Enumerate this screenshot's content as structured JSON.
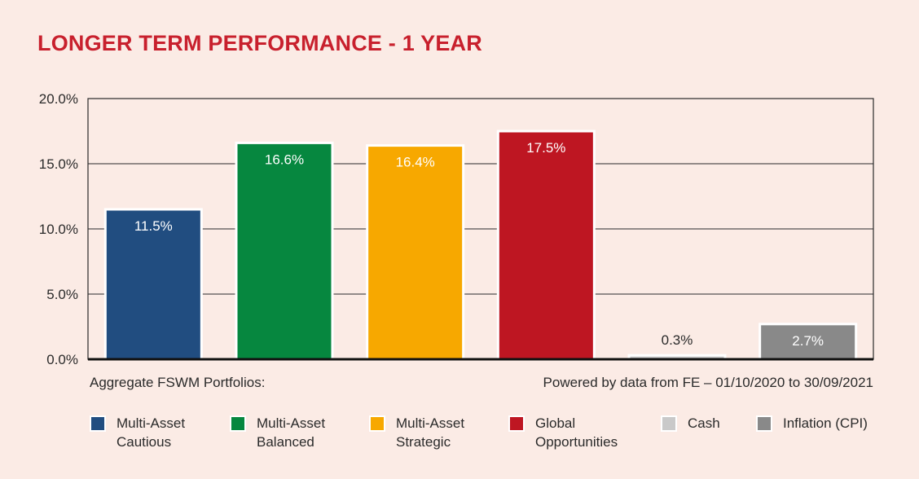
{
  "title": "LONGER TERM PERFORMANCE - 1 YEAR",
  "footnote_left": "Aggregate FSWM Portfolios:",
  "footnote_right": "Powered by data from FE – 01/10/2020 to 30/09/2021",
  "chart_data": {
    "type": "bar",
    "categories": [
      "Multi-Asset Cautious",
      "Multi-Asset Balanced",
      "Multi-Asset Strategic",
      "Global Opportunities",
      "Cash",
      "Inflation (CPI)"
    ],
    "values": [
      11.5,
      16.6,
      16.4,
      17.5,
      0.3,
      2.7
    ],
    "data_labels": [
      "11.5%",
      "16.6%",
      "16.4%",
      "17.5%",
      "0.3%",
      "2.7%"
    ],
    "colors": [
      "#214d80",
      "#06873f",
      "#f7a800",
      "#be1622",
      "#c9c9c9",
      "#898989"
    ],
    "ylim": [
      0,
      20
    ],
    "yticks": [
      0,
      5,
      10,
      15,
      20
    ],
    "ytick_labels": [
      "0.0%",
      "5.0%",
      "10.0%",
      "15.0%",
      "20.0%"
    ],
    "grid": true,
    "legend": "bottom",
    "title": "LONGER TERM PERFORMANCE - 1 YEAR",
    "xlabel": "",
    "ylabel": ""
  },
  "legend": [
    {
      "line1": "Multi-Asset",
      "line2": "Cautious"
    },
    {
      "line1": "Multi-Asset",
      "line2": "Balanced"
    },
    {
      "line1": "Multi-Asset",
      "line2": "Strategic"
    },
    {
      "line1": "Global",
      "line2": "Opportunities"
    },
    {
      "line1": "Cash",
      "line2": ""
    },
    {
      "line1": "Inflation (CPI)",
      "line2": ""
    }
  ]
}
